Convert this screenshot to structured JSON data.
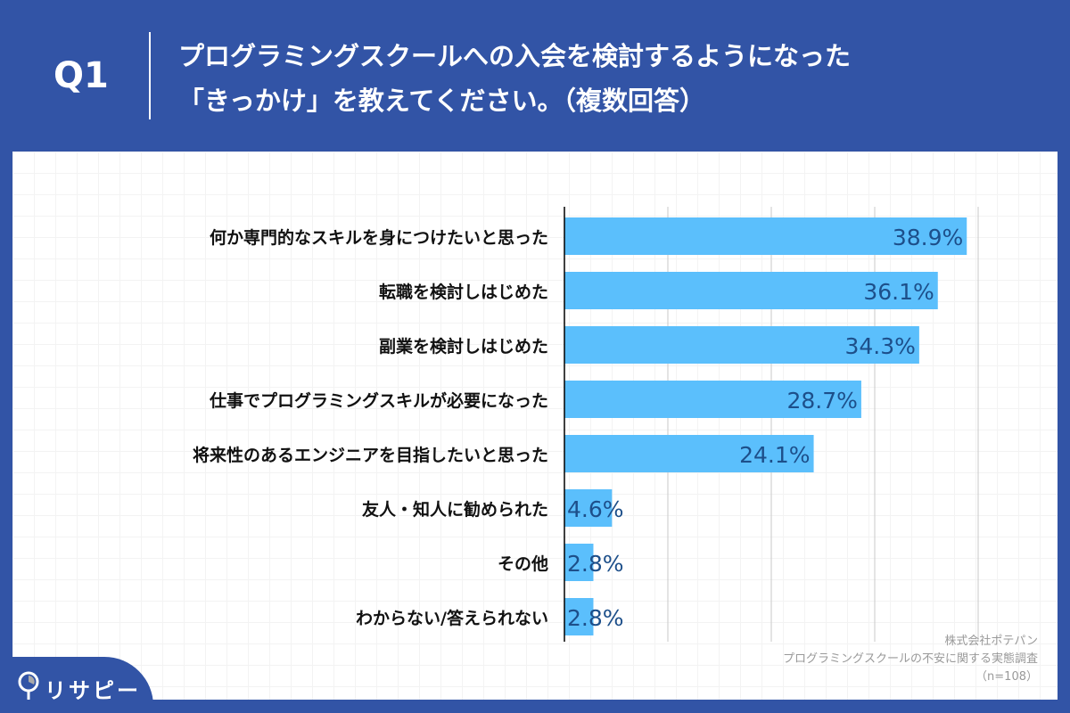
{
  "header": {
    "q_label": "Q1",
    "title_line1": "プログラミングスクールへの入会を検討するようになった",
    "title_line2": "「きっかけ」を教えてください。（複数回答）"
  },
  "colors": {
    "background": "#3254a6",
    "bar": "#5bbffc",
    "value_label": "#1d4f8a"
  },
  "logo": {
    "text": "リサピー",
    "icon": "magnifier-pin-icon"
  },
  "source": {
    "company": "株式会社ポテパン",
    "survey": "プログラミングスクールの不安に関する実態調査",
    "sample": "（n=108）"
  },
  "chart_data": {
    "type": "bar",
    "orientation": "horizontal",
    "unit": "%",
    "xlim": [
      0,
      40
    ],
    "grid": "vertical gridlines every 10",
    "categories": [
      "何か専門的なスキルを身につけたいと思った",
      "転職を検討しはじめた",
      "副業を検討しはじめた",
      "仕事でプログラミングスキルが必要になった",
      "将来性のあるエンジニアを目指したいと思った",
      "友人・知人に勧められた",
      "その他",
      "わからない/答えられない"
    ],
    "values": [
      38.9,
      36.1,
      34.3,
      28.7,
      24.1,
      4.6,
      2.8,
      2.8
    ],
    "labels": [
      "38.9%",
      "36.1%",
      "34.3%",
      "28.7%",
      "24.1%",
      "4.6%",
      "2.8%",
      "2.8%"
    ]
  }
}
